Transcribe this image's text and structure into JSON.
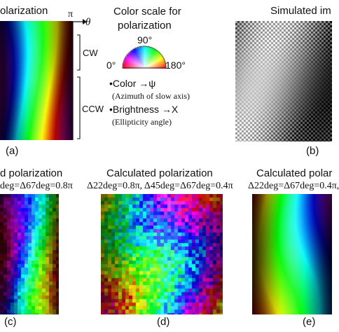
{
  "panel_a": {
    "title": "olarization",
    "axis_top": "π",
    "axis_theta": "θ",
    "cw_label": "CW",
    "ccw_label": "CCW",
    "panel_label": "(a)"
  },
  "color_scale": {
    "heading_line1": "Color scale for",
    "heading_line2": "polarization",
    "deg_90": "90°",
    "deg_0": "0°",
    "deg_180": "180°",
    "bullet1_main": "•Color →ψ",
    "bullet1_sub": "(Azimuth of slow axis)",
    "bullet2_main": "•Brightness →X",
    "bullet2_sub": "(Ellipticity angle)"
  },
  "panel_b": {
    "title": "Simulated im",
    "panel_label": "(b)"
  },
  "panel_c": {
    "title": "d polarization",
    "formula": "deg=Δ67deg=0.8π",
    "panel_label": "(c)"
  },
  "panel_d": {
    "title": "Calculated polarization",
    "formula": "Δ22deg=0.8π, Δ45deg=Δ67deg=0.4π",
    "panel_label": "(d)"
  },
  "panel_e": {
    "title": "Calculated polar",
    "formula": "Δ22deg=Δ67deg=0.4π,",
    "panel_label": "(e)"
  }
}
